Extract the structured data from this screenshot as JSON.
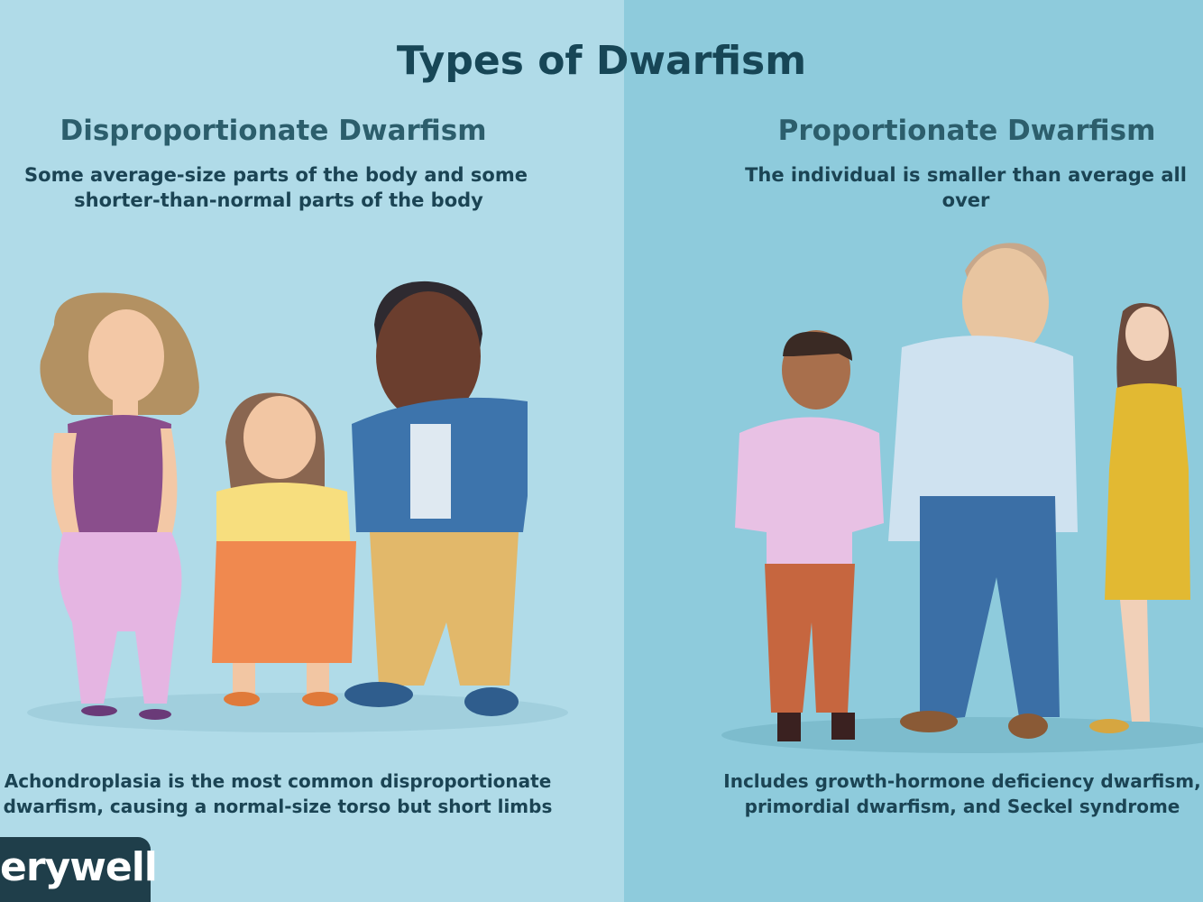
{
  "title": "Types of Dwarfism",
  "left": {
    "heading": "Disproportionate Dwarfism",
    "description_line1": "Some average-size parts of the body and some",
    "description_line2": "shorter-than-normal parts of the body",
    "footer_line1": "Achondroplasia is the most common disproportionate",
    "footer_line2": "dwarfism, causing a normal-size torso but short limbs"
  },
  "right": {
    "heading": "Proportionate Dwarfism",
    "description": "The individual is smaller than average all over",
    "footer_line1": "Includes growth-hormone deficiency dwarfism,",
    "footer_line2": "primordial dwarfism, and Seckel syndrome"
  },
  "logo": {
    "text": "erywell"
  },
  "colors": {
    "left_bg": "#b0dbe8",
    "right_bg": "#8ecbdc",
    "heading_text": "#174656",
    "logo_bg": "#1f3e4a"
  }
}
